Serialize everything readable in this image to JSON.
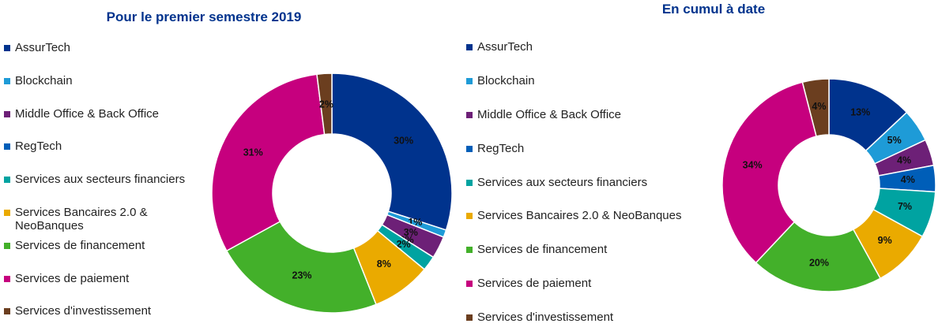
{
  "chart_data": [
    {
      "type": "donut",
      "title": "Pour le premier semestre 2019",
      "categories": [
        "AssurTech",
        "Blockchain",
        "Middle Office & Back Office",
        "RegTech",
        "Services aux secteurs financiers",
        "Services Bancaires 2.0 & NeoBanques",
        "Services de financement",
        "Services de paiement",
        "Services d'investissement"
      ],
      "values": [
        30,
        1,
        3,
        0,
        2,
        8,
        23,
        31,
        2
      ],
      "value_labels": [
        "30%",
        "1%",
        "3%",
        "0%",
        "2%",
        "8%",
        "23%",
        "31%",
        "2%"
      ],
      "colors": [
        "#00338d",
        "#1e9bd7",
        "#6d2077",
        "#005eb8",
        "#00a3a1",
        "#eaaa00",
        "#43b02a",
        "#c6007e",
        "#6b3e1f"
      ]
    },
    {
      "type": "donut",
      "title": "En cumul à date",
      "categories": [
        "AssurTech",
        "Blockchain",
        "Middle Office & Back Office",
        "RegTech",
        "Services aux secteurs financiers",
        "Services Bancaires 2.0 & NeoBanques",
        "Services de financement",
        "Services de paiement",
        "Services d'investissement"
      ],
      "values": [
        13,
        5,
        4,
        4,
        7,
        9,
        20,
        34,
        4
      ],
      "value_labels": [
        "13%",
        "5%",
        "4%",
        "4%",
        "7%",
        "9%",
        "20%",
        "34%",
        "4%"
      ],
      "colors": [
        "#00338d",
        "#1e9bd7",
        "#6d2077",
        "#005eb8",
        "#00a3a1",
        "#eaaa00",
        "#43b02a",
        "#c6007e",
        "#6b3e1f"
      ]
    }
  ]
}
